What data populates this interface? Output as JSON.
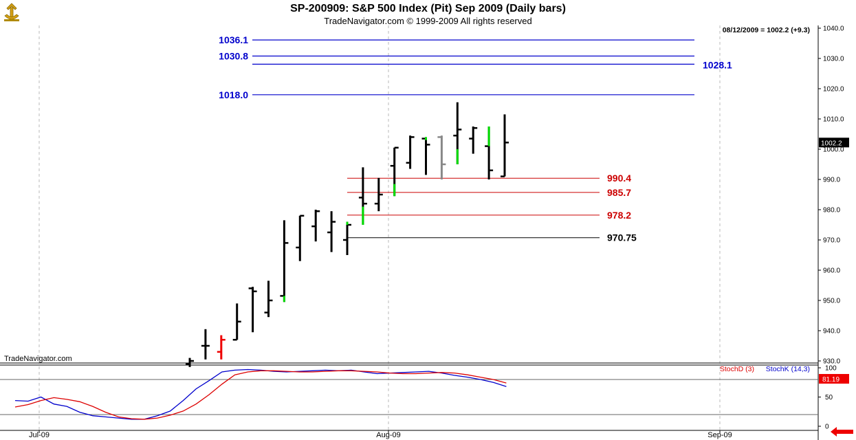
{
  "header": {
    "title": "SP-200909:  S&P 500 Index (Pit) Sep 2009  (Daily bars)",
    "subtitle": "TradeNavigator.com © 1999-2009 All rights reserved",
    "last_price_readout": "08/12/2009 = 1002.2 (+9.3)"
  },
  "watermark": "TradeNavigator.com",
  "colors": {
    "up_bar": "#00dd00",
    "down_bar": "#000000",
    "highlight_red": "#ee0000",
    "grey_bar": "#888888",
    "resistance": "#0000cc",
    "support": "#cc0000",
    "stochD": "#dd0000",
    "stochK": "#0000cc"
  },
  "chart_data": [
    {
      "type": "ohlc",
      "name": "price",
      "x_axis": {
        "labels": [
          "Jul-09",
          "Aug-09",
          "Sep-09"
        ]
      },
      "y_axis": {
        "ylim": [
          928,
          1043
        ],
        "ticks": [
          930.0,
          940.0,
          950.0,
          960.0,
          970.0,
          980.0,
          990.0,
          1000.0,
          1010.0,
          1020.0,
          1030.0,
          1040.0
        ]
      },
      "current_price_label": "1002.2",
      "bars": [
        {
          "o": 929,
          "h": 931,
          "l": 928,
          "c": 930,
          "color": "#000000"
        },
        {
          "o": 935,
          "h": 940.5,
          "l": 930.5,
          "c": 935,
          "color": "#000000"
        },
        {
          "o": 933,
          "h": 938.5,
          "l": 930.5,
          "c": 937,
          "color": "#ee0000"
        },
        {
          "o": 937,
          "h": 949,
          "l": 937,
          "c": 943,
          "color": "#000000"
        },
        {
          "o": 954,
          "h": 954.5,
          "l": 939.5,
          "c": 953,
          "color": "#000000"
        },
        {
          "o": 946,
          "h": 956.5,
          "l": 944.5,
          "c": 950,
          "color": "#000000"
        },
        {
          "o": 951.5,
          "h": 976.5,
          "l": 949.5,
          "c": 969,
          "color": "#000000"
        },
        {
          "o": 967.5,
          "h": 978,
          "l": 963,
          "c": 978,
          "color": "#000000"
        },
        {
          "o": 974.5,
          "h": 980,
          "l": 969.5,
          "c": 979.5,
          "color": "#000000"
        },
        {
          "o": 972.5,
          "h": 979.5,
          "l": 966,
          "c": 976,
          "color": "#000000"
        },
        {
          "o": 970,
          "h": 976,
          "l": 965,
          "c": 975,
          "color": "#000000"
        },
        {
          "o": 984,
          "h": 994,
          "l": 975,
          "c": 982,
          "color": "#000000"
        },
        {
          "o": 982,
          "h": 990.5,
          "l": 979.5,
          "c": 985,
          "color": "#000000"
        },
        {
          "o": 994.5,
          "h": 1000.5,
          "l": 984.5,
          "c": 1000.5,
          "color": "#000000"
        },
        {
          "o": 995.5,
          "h": 1004.5,
          "l": 993.5,
          "c": 1004,
          "color": "#000000"
        },
        {
          "o": 1003.5,
          "h": 1004,
          "l": 991.5,
          "c": 1001.5,
          "color": "#000000"
        },
        {
          "o": 1004,
          "h": 1004.5,
          "l": 990,
          "c": 995,
          "color": "#888888"
        },
        {
          "o": 1004.5,
          "h": 1015.5,
          "l": 995,
          "c": 1006.5,
          "color": "#000000"
        },
        {
          "o": 1003.5,
          "h": 1007.5,
          "l": 998.5,
          "c": 1007,
          "color": "#000000"
        },
        {
          "o": 1001,
          "h": 1007.5,
          "l": 990,
          "c": 993,
          "color": "#000000"
        },
        {
          "o": 991,
          "h": 1011.5,
          "l": 991,
          "c": 1002.2,
          "color": "#000000"
        }
      ],
      "green_segments": [
        {
          "bar": 6,
          "lo": 949.5,
          "hi": 951.5
        },
        {
          "bar": 10,
          "lo": 975,
          "hi": 976
        },
        {
          "bar": 11,
          "lo": 975,
          "hi": 981
        },
        {
          "bar": 13,
          "lo": 984.5,
          "hi": 988.5
        },
        {
          "bar": 15,
          "lo": 1003,
          "hi": 1004
        },
        {
          "bar": 17,
          "lo": 995,
          "hi": 1000
        },
        {
          "bar": 19,
          "lo": 1001,
          "hi": 1007.5
        }
      ],
      "resistance_lines": [
        {
          "value": 1036.1,
          "label": "1036.1",
          "label_side": "left"
        },
        {
          "value": 1030.8,
          "label": "1030.8",
          "label_side": "left"
        },
        {
          "value": 1028.1,
          "label": "1028.1",
          "label_side": "right"
        },
        {
          "value": 1018.0,
          "label": "1018.0",
          "label_side": "left"
        }
      ],
      "support_lines": [
        {
          "value": 990.4,
          "label": "990.4",
          "color": "#cc0000"
        },
        {
          "value": 985.7,
          "label": "985.7",
          "color": "#cc0000"
        },
        {
          "value": 978.2,
          "label": "978.2",
          "color": "#cc0000"
        },
        {
          "value": 970.75,
          "label": "970.75",
          "color": "#000000"
        }
      ]
    },
    {
      "type": "line",
      "name": "stochastic",
      "y_axis": {
        "ylim": [
          0,
          100
        ],
        "ticks": [
          0,
          50,
          100
        ],
        "reference_levels": [
          20,
          80
        ]
      },
      "current_value_label": "81.19",
      "series": [
        {
          "name": "StochD (3)",
          "color": "#dd0000",
          "values": [
            33,
            37,
            44,
            49,
            46,
            42,
            34,
            24,
            16,
            13,
            12,
            14,
            19,
            26,
            38,
            54,
            72,
            88,
            93,
            95,
            95,
            94,
            93,
            93,
            94,
            95,
            95,
            94,
            93,
            91,
            90,
            90,
            91,
            92,
            91,
            88,
            84,
            80,
            74
          ]
        },
        {
          "name": "StochK (14,3)",
          "color": "#0000cc",
          "values": [
            44,
            43,
            50,
            38,
            34,
            24,
            18,
            16,
            14,
            12,
            12,
            18,
            26,
            44,
            64,
            78,
            93,
            96,
            97,
            96,
            94,
            93,
            94,
            95,
            96,
            95,
            96,
            93,
            90,
            91,
            92,
            93,
            94,
            91,
            87,
            84,
            80,
            75,
            68
          ]
        }
      ]
    }
  ]
}
